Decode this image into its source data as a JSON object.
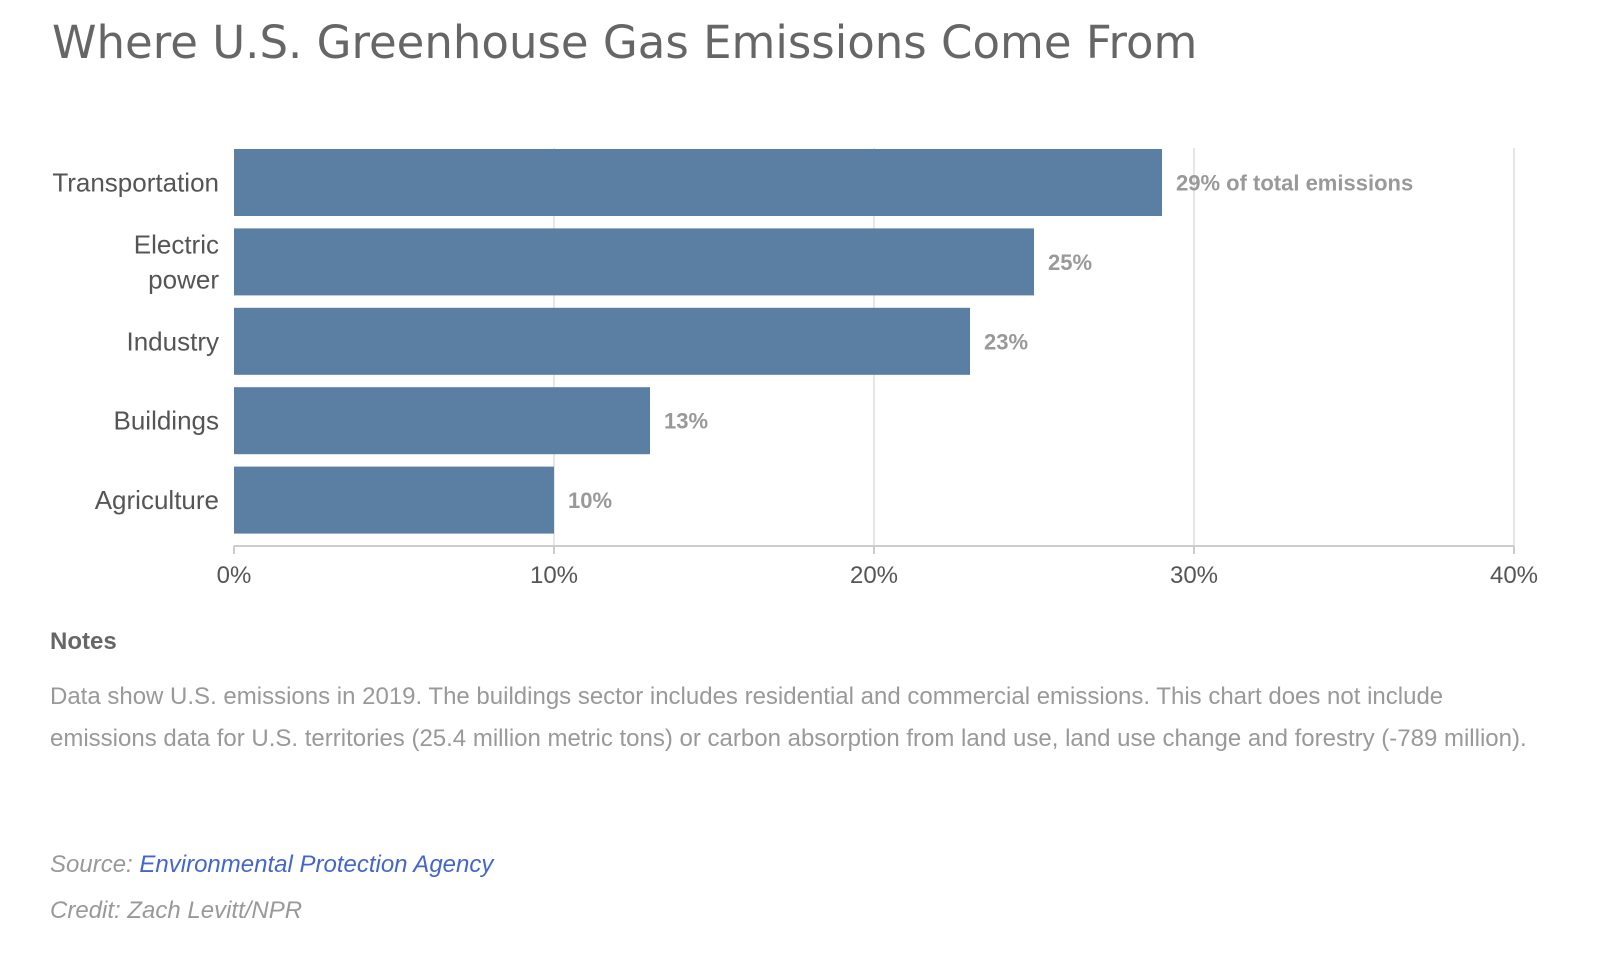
{
  "title": "Where U.S. Greenhouse Gas Emissions Come From",
  "chart_data": {
    "type": "bar",
    "orientation": "horizontal",
    "categories": [
      [
        "Transportation"
      ],
      [
        "Electric",
        "power"
      ],
      [
        "Industry"
      ],
      [
        "Buildings"
      ],
      [
        "Agriculture"
      ]
    ],
    "values": [
      29,
      25,
      23,
      13,
      10
    ],
    "value_labels": [
      "29% of total emissions",
      "25%",
      "23%",
      "13%",
      "10%"
    ],
    "xlim": [
      0,
      40
    ],
    "x_ticks": [
      0,
      10,
      20,
      30,
      40
    ],
    "x_tick_labels": [
      "0%",
      "10%",
      "20%",
      "30%",
      "40%"
    ],
    "grid": true,
    "xlabel": "",
    "ylabel": ""
  },
  "colors": {
    "bar": "#5a7fa3",
    "grid": "#e6e6e6",
    "axis": "#cccccc"
  },
  "notes": {
    "heading": "Notes",
    "text": "Data show U.S. emissions in 2019. The buildings sector includes residential and commercial emissions. This chart does not include emissions data for U.S. territories (25.4 million metric tons) or carbon absorption from land use, land use change and forestry (-789 million)."
  },
  "source": {
    "prefix": "Source: ",
    "link_text": "Environmental Protection Agency"
  },
  "credit": "Credit: Zach Levitt/NPR"
}
